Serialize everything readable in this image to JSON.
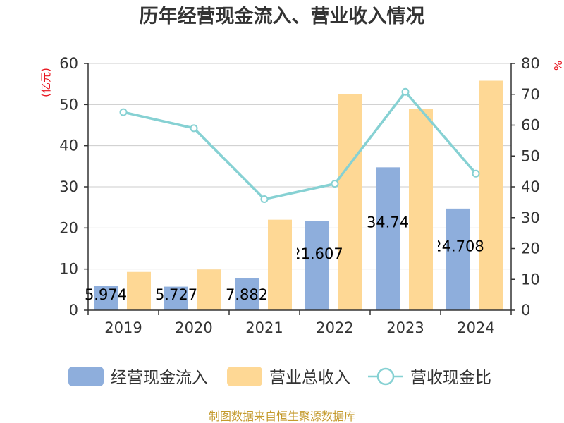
{
  "chart_data": {
    "type": "bar",
    "title": "历年经营现金流入、营业收入情况",
    "left_unit": "(亿元)",
    "right_unit": "%",
    "categories": [
      "2019",
      "2020",
      "2021",
      "2022",
      "2023",
      "2024"
    ],
    "series": [
      {
        "name": "经营现金流入",
        "type": "bar",
        "axis": "left",
        "color": "#8eaedc",
        "values": [
          5.974,
          5.727,
          7.882,
          21.607,
          34.74,
          24.708
        ],
        "labels": [
          "5.974",
          "5.727",
          "7.882",
          "21.607",
          "34.74",
          "24.708"
        ]
      },
      {
        "name": "营业总收入",
        "type": "bar",
        "axis": "left",
        "color": "#fed895",
        "values": [
          9.3,
          9.9,
          22.0,
          52.6,
          49.0,
          55.8
        ]
      },
      {
        "name": "营收现金比",
        "type": "line",
        "axis": "right",
        "color": "#86d1d3",
        "values": [
          64.2,
          59.0,
          36.0,
          41.0,
          70.8,
          44.3
        ]
      }
    ],
    "left_axis": {
      "min": 0,
      "max": 60,
      "ticks": [
        "0",
        "10",
        "20",
        "30",
        "40",
        "50",
        "60"
      ]
    },
    "right_axis": {
      "min": 0,
      "max": 80,
      "ticks": [
        "0",
        "10",
        "20",
        "30",
        "40",
        "50",
        "60",
        "70",
        "80"
      ]
    },
    "grid": true,
    "legend_position": "bottom"
  },
  "footer": {
    "source": "制图数据来自恒生聚源数据库"
  }
}
